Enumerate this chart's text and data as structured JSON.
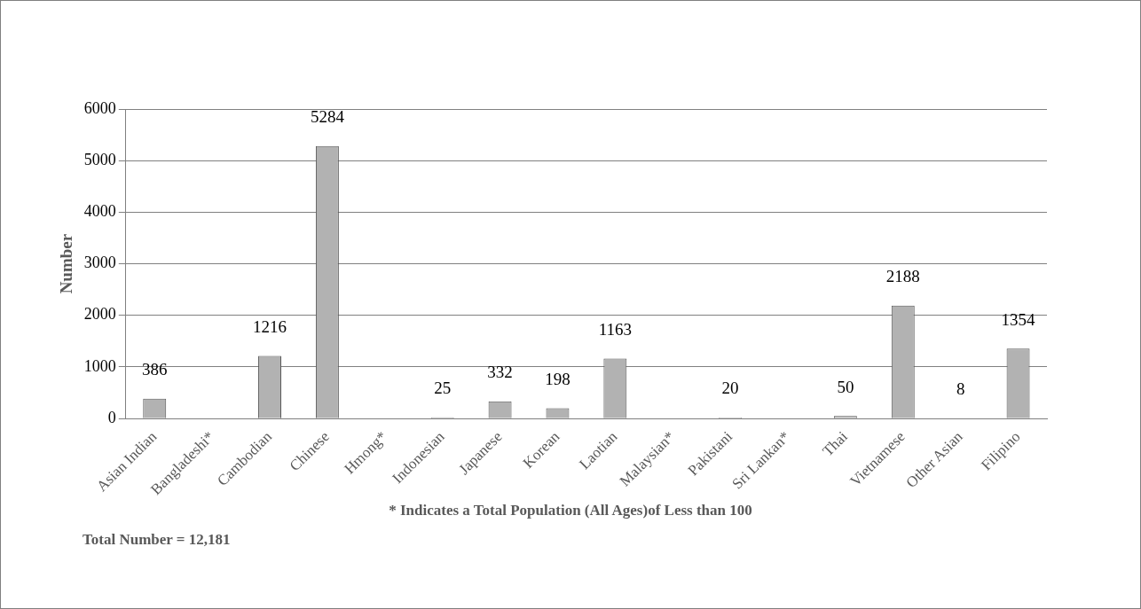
{
  "chart_data": {
    "type": "bar",
    "ylabel": "Number",
    "categories": [
      "Asian Indian",
      "Bangladeshi*",
      "Cambodian",
      "Chinese",
      "Hmong*",
      "Indonesian",
      "Japanese",
      "Korean",
      "Laotian",
      "Malaysian*",
      "Pakistani",
      "Sri Lankan*",
      "Thai",
      "Vietnamese",
      "Other Asian",
      "Filipino"
    ],
    "values": [
      386,
      null,
      1216,
      5284,
      null,
      25,
      332,
      198,
      1163,
      null,
      20,
      null,
      50,
      2188,
      8,
      1354
    ],
    "value_labels": [
      "386",
      null,
      "1216",
      "5284",
      null,
      "25",
      "332",
      "198",
      "1163",
      null,
      "20",
      null,
      "50",
      "2188",
      "8",
      "1354"
    ],
    "color": "#b2b2b2",
    "ylim": [
      0,
      6000
    ],
    "yticks": [
      0,
      1000,
      2000,
      3000,
      4000,
      5000,
      6000
    ],
    "grid": "y",
    "legend": false,
    "annotations": [
      "* Indicates a Total Population (All Ages)of Less than 100",
      "Total Number = 12,181"
    ]
  }
}
